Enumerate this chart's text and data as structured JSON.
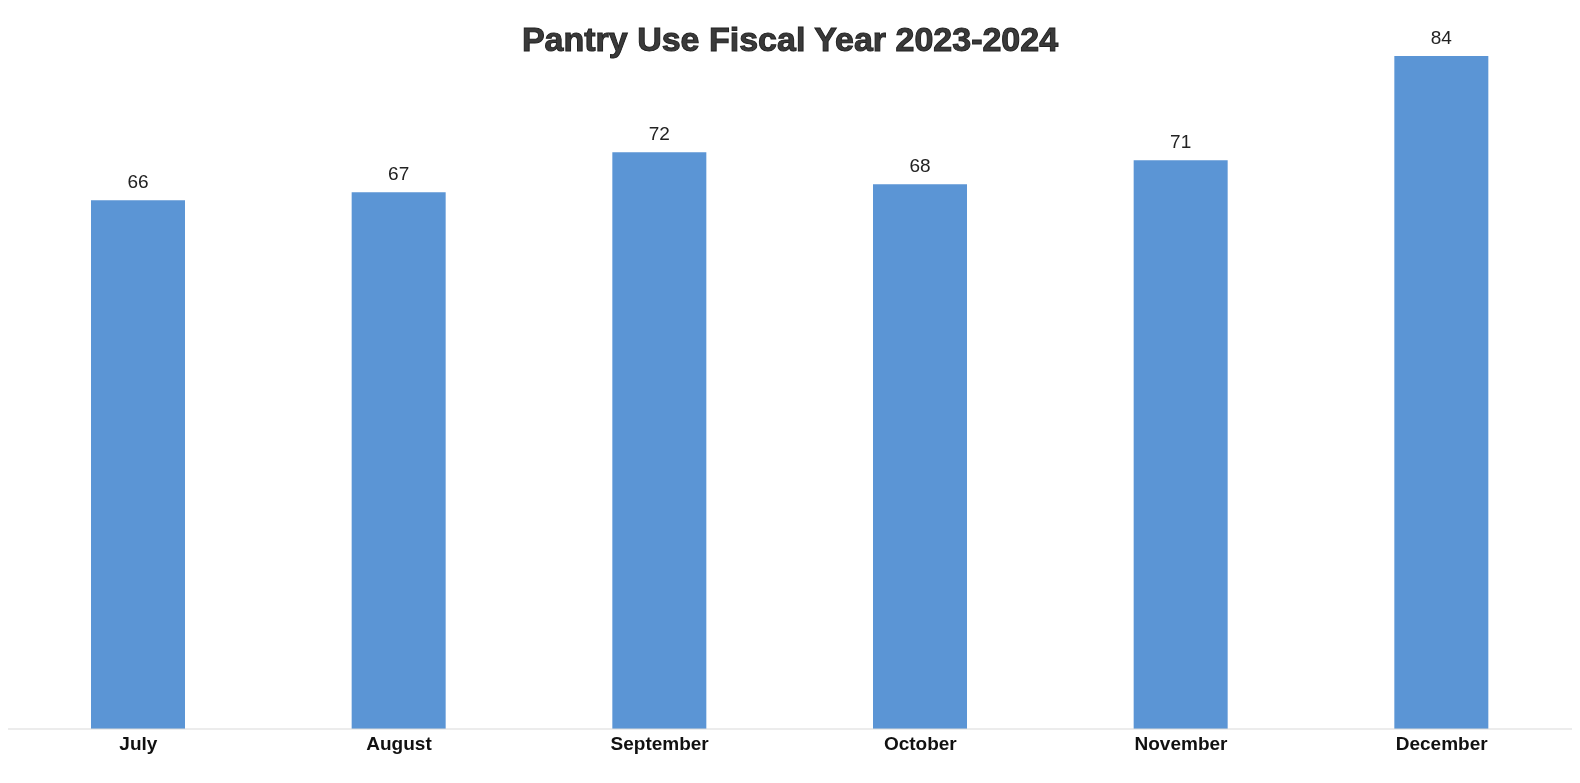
{
  "chart_data": {
    "type": "bar",
    "title": "Pantry Use Fiscal Year 2023-2024",
    "categories": [
      "July",
      "August",
      "September",
      "October",
      "November",
      "December"
    ],
    "values": [
      66,
      67,
      72,
      68,
      71,
      84
    ],
    "color": "#5b95d5",
    "data_labels": true
  }
}
